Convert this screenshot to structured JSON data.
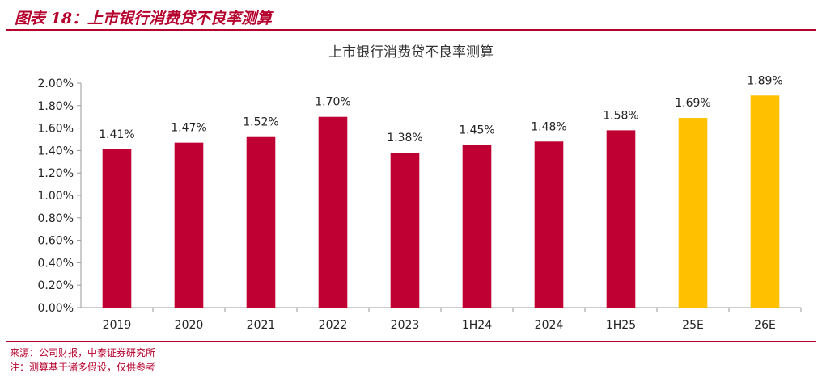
{
  "figure": {
    "title": "图表 18：上市银行消费贷不良率测算",
    "source": "来源：公司财报，中泰证券研究所",
    "note": "注：测算基于诸多假设，仅供参考"
  },
  "colors": {
    "actual": "#be0033",
    "estimate": "#ffc000",
    "accent": "#b5002d"
  },
  "chart_data": {
    "type": "bar",
    "title": "上市银行消费贷不良率测算",
    "categories": [
      "2019",
      "2020",
      "2021",
      "2022",
      "2023",
      "1H24",
      "2024",
      "1H25",
      "25E",
      "26E"
    ],
    "values": [
      1.41,
      1.47,
      1.52,
      1.7,
      1.38,
      1.45,
      1.48,
      1.58,
      1.69,
      1.89
    ],
    "data_labels": [
      "1.41%",
      "1.47%",
      "1.52%",
      "1.70%",
      "1.38%",
      "1.45%",
      "1.48%",
      "1.58%",
      "1.69%",
      "1.89%"
    ],
    "estimate_flags": [
      false,
      false,
      false,
      false,
      false,
      false,
      false,
      false,
      true,
      true
    ],
    "ylim": [
      0,
      2.0
    ],
    "yticks": [
      0,
      0.2,
      0.4,
      0.6,
      0.8,
      1.0,
      1.2,
      1.4,
      1.6,
      1.8,
      2.0
    ],
    "ytick_labels": [
      "0.00%",
      "0.20%",
      "0.40%",
      "0.60%",
      "0.80%",
      "1.00%",
      "1.20%",
      "1.40%",
      "1.60%",
      "1.80%",
      "2.00%"
    ],
    "xlabel": "",
    "ylabel": "",
    "grid": false,
    "legend": "none"
  }
}
